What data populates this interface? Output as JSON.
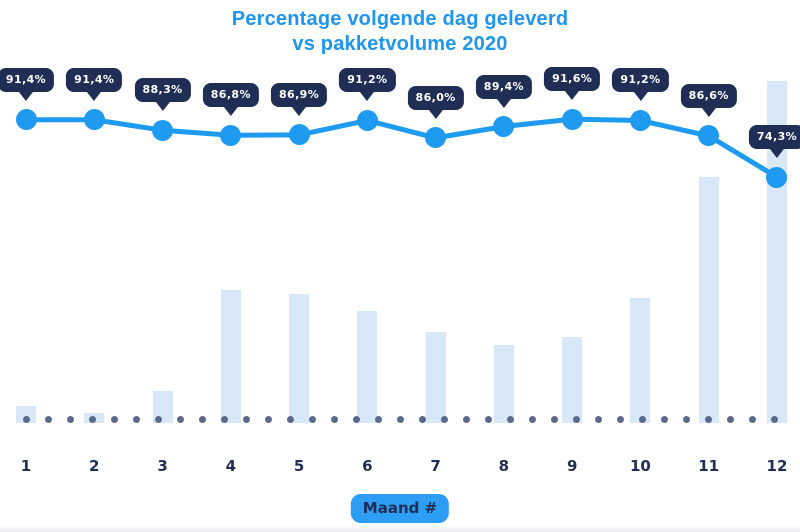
{
  "header": {
    "title_line1": "Percentage volgende dag geleverd",
    "title_line2": "vs pakketvolume 2020"
  },
  "x_axis": {
    "label_badge": "Maand #",
    "months": [
      "1",
      "2",
      "3",
      "4",
      "5",
      "6",
      "7",
      "8",
      "9",
      "10",
      "11",
      "12"
    ]
  },
  "chart_data": {
    "type": "line",
    "title": "Percentage volgende dag geleverd vs pakketvolume 2020",
    "xlabel": "Maand #",
    "categories": [
      1,
      2,
      3,
      4,
      5,
      6,
      7,
      8,
      9,
      10,
      11,
      12
    ],
    "series": [
      {
        "name": "Percentage volgende dag geleverd",
        "type": "line",
        "unit": "%",
        "values": [
          91.4,
          91.4,
          88.3,
          86.8,
          86.9,
          91.2,
          86.0,
          89.4,
          91.6,
          91.2,
          86.6,
          74.3
        ],
        "labels": [
          "91,4%",
          "91,4%",
          "88,3%",
          "86,8%",
          "86,9%",
          "91,2%",
          "86,0%",
          "89,4%",
          "91,6%",
          "91,2%",
          "86,6%",
          "74,3%"
        ]
      },
      {
        "name": "Pakketvolume 2020",
        "type": "bar",
        "unit": "relative index, max = 100",
        "values": [
          5,
          3,
          9.4,
          38.9,
          37.7,
          32.7,
          26.6,
          22.8,
          25.1,
          36.5,
          71.9,
          100
        ]
      }
    ],
    "ylim_line_pct": [
      70,
      95
    ],
    "legend": "none",
    "grid": false,
    "baseline_style": "dotted"
  },
  "colors": {
    "accent_blue": "#1E9BF0",
    "title_blue": "#1E96F0",
    "navy": "#202E56",
    "bar_light_blue": "#D9E8F8",
    "dot_slate": "#5A6A8F",
    "axis_badge_blue": "#2D9EF3",
    "badge_text": "#FFFFFF",
    "background": "#FFFFFF"
  }
}
